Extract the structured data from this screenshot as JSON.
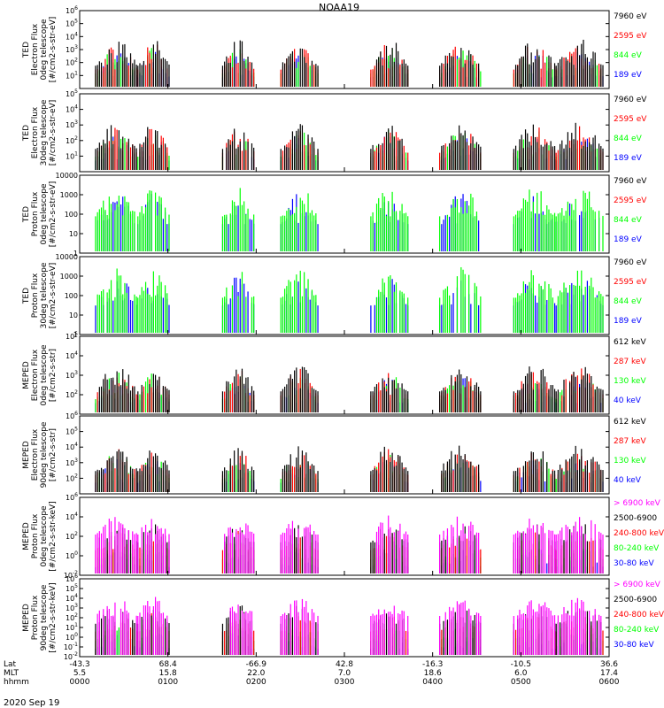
{
  "title": "NOAA19",
  "date_label": "2020 Sep 19",
  "colors": {
    "black": "#000000",
    "red": "#ff0000",
    "green": "#00ff00",
    "blue": "#0000ff",
    "magenta": "#ff00ff"
  },
  "chart_data": [
    {
      "type": "scatter",
      "id": "ted-e-0",
      "ylabel": [
        "TED",
        "Electron Flux",
        "0deg telescope",
        "[#/cm2-s-str-eV]"
      ],
      "yscale": "log",
      "ylim": [
        1,
        1000000
      ],
      "yticks": [
        "10^1",
        "10^2",
        "10^3",
        "10^4",
        "10^5",
        "10^6"
      ],
      "legend": [
        {
          "label": "7960 eV",
          "color": "#000000"
        },
        {
          "label": "2595 eV",
          "color": "#ff0000"
        },
        {
          "label": "844 eV",
          "color": "#00ff00"
        },
        {
          "label": "189 eV",
          "color": "#0000ff"
        }
      ]
    },
    {
      "type": "scatter",
      "id": "ted-e-30",
      "ylabel": [
        "TED",
        "Electron Flux",
        "30deg telescope",
        "[#/cm2-s-str-eV]"
      ],
      "yscale": "log",
      "ylim": [
        1,
        100000
      ],
      "yticks": [
        "10^1",
        "10^2",
        "10^3",
        "10^4",
        "10^5"
      ],
      "legend": [
        {
          "label": "7960 eV",
          "color": "#000000"
        },
        {
          "label": "2595 eV",
          "color": "#ff0000"
        },
        {
          "label": "844 eV",
          "color": "#00ff00"
        },
        {
          "label": "189 eV",
          "color": "#0000ff"
        }
      ]
    },
    {
      "type": "scatter",
      "id": "ted-p-0",
      "ylabel": [
        "TED",
        "Proton Flux",
        "0deg telescope",
        "[#/cm2-s-str-eV]"
      ],
      "yscale": "log",
      "ylim": [
        1,
        10000
      ],
      "yticks": [
        "1",
        "10",
        "100",
        "1000",
        "10000"
      ],
      "legend": [
        {
          "label": "7960 eV",
          "color": "#000000"
        },
        {
          "label": "2595 eV",
          "color": "#ff0000"
        },
        {
          "label": "844 eV",
          "color": "#00ff00"
        },
        {
          "label": "189 eV",
          "color": "#0000ff"
        }
      ]
    },
    {
      "type": "scatter",
      "id": "ted-p-30",
      "ylabel": [
        "TED",
        "Proton Flux",
        "30deg telescope",
        "[#/cm2-s-str-eV]"
      ],
      "yscale": "log",
      "ylim": [
        1,
        10000
      ],
      "yticks": [
        "1",
        "10",
        "100",
        "1000",
        "10000"
      ],
      "legend": [
        {
          "label": "7960 eV",
          "color": "#000000"
        },
        {
          "label": "2595 eV",
          "color": "#ff0000"
        },
        {
          "label": "844 eV",
          "color": "#00ff00"
        },
        {
          "label": "189 eV",
          "color": "#0000ff"
        }
      ]
    },
    {
      "type": "scatter",
      "id": "mepedd-e-0",
      "ylabel": [
        "MEPED",
        "Electron Flux",
        "0deg telescope",
        "[#/cm2-s-str]"
      ],
      "yscale": "log",
      "ylim": [
        10,
        100000
      ],
      "yticks": [
        "10^2",
        "10^3",
        "10^4",
        "10^5"
      ],
      "legend": [
        {
          "label": "612 keV",
          "color": "#000000"
        },
        {
          "label": "287 keV",
          "color": "#ff0000"
        },
        {
          "label": "130 keV",
          "color": "#00ff00"
        },
        {
          "label": "40 keV",
          "color": "#0000ff"
        }
      ]
    },
    {
      "type": "scatter",
      "id": "meped-e-90",
      "ylabel": [
        "MEPED",
        "Electron Flux",
        "90deg telescope",
        "[#/cm2-s-str]"
      ],
      "yscale": "log",
      "ylim": [
        10,
        1000000
      ],
      "yticks": [
        "10^2",
        "10^3",
        "10^4",
        "10^5",
        "10^6"
      ],
      "legend": [
        {
          "label": "612 keV",
          "color": "#000000"
        },
        {
          "label": "287 keV",
          "color": "#ff0000"
        },
        {
          "label": "130 keV",
          "color": "#00ff00"
        },
        {
          "label": "40 keV",
          "color": "#0000ff"
        }
      ]
    },
    {
      "type": "scatter",
      "id": "meped-p-0",
      "ylabel": [
        "MEPED",
        "Proton Flux",
        "0deg telescope",
        "[#/cm2-s-str-keV]"
      ],
      "yscale": "log",
      "ylim": [
        0.01,
        1000000
      ],
      "yticks": [
        "10^-2",
        "10^0",
        "10^2",
        "10^4",
        "10^6"
      ],
      "legend": [
        {
          "label": "> 6900 keV",
          "color": "#ff00ff"
        },
        {
          "label": "2500-6900",
          "color": "#000000"
        },
        {
          "label": "240-800 keV",
          "color": "#ff0000"
        },
        {
          "label": "80-240 keV",
          "color": "#00ff00"
        },
        {
          "label": "30-80 keV",
          "color": "#0000ff"
        }
      ]
    },
    {
      "type": "scatter",
      "id": "meped-p-90",
      "ylabel": [
        "MEPED",
        "Proton Flux",
        "90deg telescope",
        "[#/cm2-s-str-keV]"
      ],
      "yscale": "log",
      "ylim": [
        0.01,
        1000000
      ],
      "yticks": [
        "10^-2",
        "10^-1",
        "10^0",
        "10^1",
        "10^2",
        "10^3",
        "10^4",
        "10^5",
        "10^6"
      ],
      "legend": [
        {
          "label": "> 6900 keV",
          "color": "#ff00ff"
        },
        {
          "label": "2500-6900",
          "color": "#000000"
        },
        {
          "label": "240-800 keV",
          "color": "#ff0000"
        },
        {
          "label": "80-240 keV",
          "color": "#00ff00"
        },
        {
          "label": "30-80 keV",
          "color": "#0000ff"
        }
      ]
    }
  ],
  "xaxis": {
    "row_labels": [
      "Lat",
      "MLT",
      "hhmm"
    ],
    "xlim_minutes": [
      0,
      360
    ],
    "ticks": [
      {
        "lat": "-43.3",
        "mlt": "5.5",
        "hhmm": "0000",
        "t": 0
      },
      {
        "lat": "68.4",
        "mlt": "15.8",
        "hhmm": "0100",
        "t": 60
      },
      {
        "lat": "-66.9",
        "mlt": "22.0",
        "hhmm": "0200",
        "t": 120
      },
      {
        "lat": "42.8",
        "mlt": "7.0",
        "hhmm": "0300",
        "t": 180
      },
      {
        "lat": "-16.3",
        "mlt": "18.6",
        "hhmm": "0400",
        "t": 240
      },
      {
        "lat": "-10.5",
        "mlt": "6.0",
        "hhmm": "0500",
        "t": 300
      },
      {
        "lat": "36.6",
        "mlt": "17.4",
        "hhmm": "0600",
        "t": 360
      }
    ]
  }
}
